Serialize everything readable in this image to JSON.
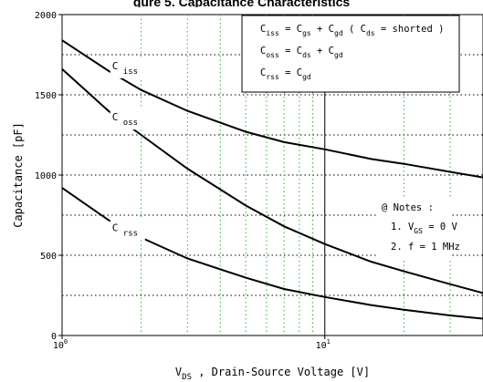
{
  "page": {
    "title": "gure 5. Capacitance Characteristics"
  },
  "chart_data": {
    "type": "line",
    "title": "",
    "xlabel": "V_DS , Drain-Source Voltage [V]",
    "ylabel": "Capacitance  [pF]",
    "xscale": "log",
    "xlim": [
      1,
      40
    ],
    "ylim": [
      0,
      2000
    ],
    "grid": true,
    "x_ticks": [
      {
        "base": "10",
        "exp": "0"
      },
      {
        "base": "10",
        "exp": "1"
      }
    ],
    "y_ticks": [
      "0",
      "500",
      "1000",
      "1500",
      "2000"
    ],
    "series": [
      {
        "name": "C_iss",
        "x": [
          1,
          1.5,
          2,
          3,
          5,
          7,
          10,
          15,
          20,
          30,
          40
        ],
        "y": [
          1840,
          1650,
          1530,
          1400,
          1270,
          1205,
          1160,
          1100,
          1070,
          1020,
          985
        ]
      },
      {
        "name": "C_oss",
        "x": [
          1,
          1.5,
          2,
          3,
          5,
          7,
          10,
          15,
          20,
          30,
          40
        ],
        "y": [
          1660,
          1400,
          1250,
          1040,
          810,
          680,
          570,
          460,
          400,
          320,
          265
        ]
      },
      {
        "name": "C_rss",
        "x": [
          1,
          1.5,
          2,
          3,
          5,
          7,
          10,
          15,
          20,
          30,
          40
        ],
        "y": [
          920,
          720,
          610,
          480,
          360,
          290,
          240,
          190,
          160,
          125,
          105
        ]
      }
    ],
    "legend": {
      "location": "top-right",
      "lines": [
        {
          "pre": "C",
          "pre_sub": "iss",
          "eq": " = C",
          "a_sub": "gs",
          "plus": " + C",
          "b_sub": "gd",
          "tail": "  ( C",
          "tail_sub": "ds",
          "tail_end": " = shorted )"
        },
        {
          "pre": "C",
          "pre_sub": "oss",
          "eq": " = C",
          "a_sub": "ds",
          "plus": " + C",
          "b_sub": "gd"
        },
        {
          "pre": "C",
          "pre_sub": "rss",
          "eq": " = C",
          "a_sub": "gd"
        }
      ]
    },
    "notes": {
      "heading": "@ Notes :",
      "items": [
        {
          "prefix": "1. V",
          "sub": "GS",
          "suffix": " = 0 V"
        },
        {
          "prefix": "2. f = 1 MHz"
        }
      ]
    }
  }
}
